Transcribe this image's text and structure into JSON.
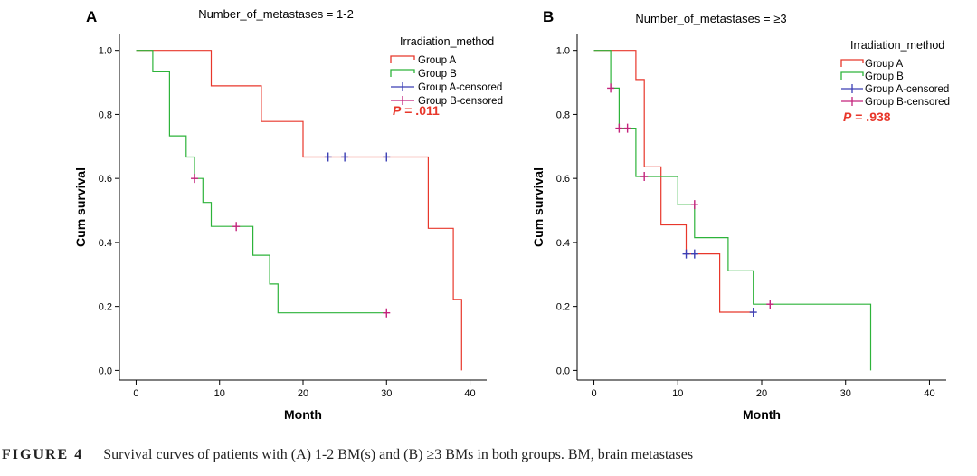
{
  "caption": {
    "label": "FIGURE 4",
    "text": "Survival curves of patients with (A) 1-2 BM(s) and (B) ≥3 BMs in both groups. BM, brain metastases"
  },
  "colors": {
    "group_a": "#e8372b",
    "group_b": "#2db33a",
    "group_a_censored": "#3b3fb5",
    "group_b_censored": "#c4237c",
    "p_value": "#e8372b"
  },
  "chart_data": [
    {
      "panel": "A",
      "type": "line",
      "step": true,
      "title": "Number_of_metastases = 1-2",
      "xlabel": "Month",
      "ylabel": "Cum survival",
      "xlim": [
        -2,
        42
      ],
      "ylim": [
        -0.03,
        1.05
      ],
      "xticks": [
        0,
        10,
        20,
        30,
        40
      ],
      "yticks": [
        0.0,
        0.2,
        0.4,
        0.6,
        0.8,
        1.0
      ],
      "legend_title": "Irradiation_method",
      "legend_position": "top-right",
      "p_value": {
        "prefix": "P",
        "value": " = .011"
      },
      "series": [
        {
          "name": "Group A",
          "color_key": "group_a",
          "points": [
            [
              0,
              1.0
            ],
            [
              9,
              1.0
            ],
            [
              9,
              0.889
            ],
            [
              15,
              0.889
            ],
            [
              15,
              0.778
            ],
            [
              20,
              0.778
            ],
            [
              20,
              0.667
            ],
            [
              35,
              0.667
            ],
            [
              35,
              0.444
            ],
            [
              38,
              0.444
            ],
            [
              38,
              0.222
            ],
            [
              39,
              0.222
            ],
            [
              39,
              0.0
            ]
          ]
        },
        {
          "name": "Group B",
          "color_key": "group_b",
          "points": [
            [
              0,
              1.0
            ],
            [
              2,
              1.0
            ],
            [
              2,
              0.933
            ],
            [
              4,
              0.933
            ],
            [
              4,
              0.733
            ],
            [
              6,
              0.733
            ],
            [
              6,
              0.667
            ],
            [
              7,
              0.667
            ],
            [
              7,
              0.6
            ],
            [
              8,
              0.6
            ],
            [
              8,
              0.525
            ],
            [
              9,
              0.525
            ],
            [
              9,
              0.45
            ],
            [
              14,
              0.45
            ],
            [
              14,
              0.36
            ],
            [
              16,
              0.36
            ],
            [
              16,
              0.27
            ],
            [
              17,
              0.27
            ],
            [
              17,
              0.18
            ],
            [
              30,
              0.18
            ]
          ]
        },
        {
          "name": "Group A-censored",
          "color_key": "group_a_censored",
          "marker": "plus",
          "points": [
            [
              23,
              0.667
            ],
            [
              25,
              0.667
            ],
            [
              30,
              0.667
            ]
          ]
        },
        {
          "name": "Group B-censored",
          "color_key": "group_b_censored",
          "marker": "plus",
          "points": [
            [
              7,
              0.6
            ],
            [
              12,
              0.45
            ],
            [
              30,
              0.18
            ]
          ]
        }
      ]
    },
    {
      "panel": "B",
      "type": "line",
      "step": true,
      "title": "Number_of_metastases = ≥3",
      "xlabel": "Month",
      "ylabel": "Cum survival",
      "xlim": [
        -2,
        42
      ],
      "ylim": [
        -0.03,
        1.05
      ],
      "xticks": [
        0,
        10,
        20,
        30,
        40
      ],
      "yticks": [
        0.0,
        0.2,
        0.4,
        0.6,
        0.8,
        1.0
      ],
      "legend_title": "Irradiation_method",
      "legend_position": "top-right",
      "p_value": {
        "prefix": "P",
        "value": " = .938"
      },
      "series": [
        {
          "name": "Group A",
          "color_key": "group_a",
          "points": [
            [
              0,
              1.0
            ],
            [
              5,
              1.0
            ],
            [
              5,
              0.909
            ],
            [
              6,
              0.909
            ],
            [
              6,
              0.636
            ],
            [
              8,
              0.636
            ],
            [
              8,
              0.455
            ],
            [
              11,
              0.455
            ],
            [
              11,
              0.364
            ],
            [
              15,
              0.364
            ],
            [
              15,
              0.182
            ],
            [
              19,
              0.182
            ]
          ]
        },
        {
          "name": "Group B",
          "color_key": "group_b",
          "points": [
            [
              0,
              1.0
            ],
            [
              2,
              1.0
            ],
            [
              2,
              0.882
            ],
            [
              3,
              0.882
            ],
            [
              3,
              0.757
            ],
            [
              5,
              0.757
            ],
            [
              5,
              0.606
            ],
            [
              10,
              0.606
            ],
            [
              10,
              0.518
            ],
            [
              12,
              0.518
            ],
            [
              12,
              0.415
            ],
            [
              16,
              0.415
            ],
            [
              16,
              0.311
            ],
            [
              19,
              0.311
            ],
            [
              19,
              0.207
            ],
            [
              33,
              0.207
            ],
            [
              33,
              0.0
            ]
          ]
        },
        {
          "name": "Group A-censored",
          "color_key": "group_a_censored",
          "marker": "plus",
          "points": [
            [
              11,
              0.364
            ],
            [
              12,
              0.364
            ],
            [
              19,
              0.182
            ]
          ]
        },
        {
          "name": "Group B-censored",
          "color_key": "group_b_censored",
          "marker": "plus",
          "points": [
            [
              2,
              0.882
            ],
            [
              3,
              0.757
            ],
            [
              4,
              0.757
            ],
            [
              6,
              0.606
            ],
            [
              12,
              0.518
            ],
            [
              21,
              0.207
            ]
          ]
        }
      ]
    }
  ]
}
